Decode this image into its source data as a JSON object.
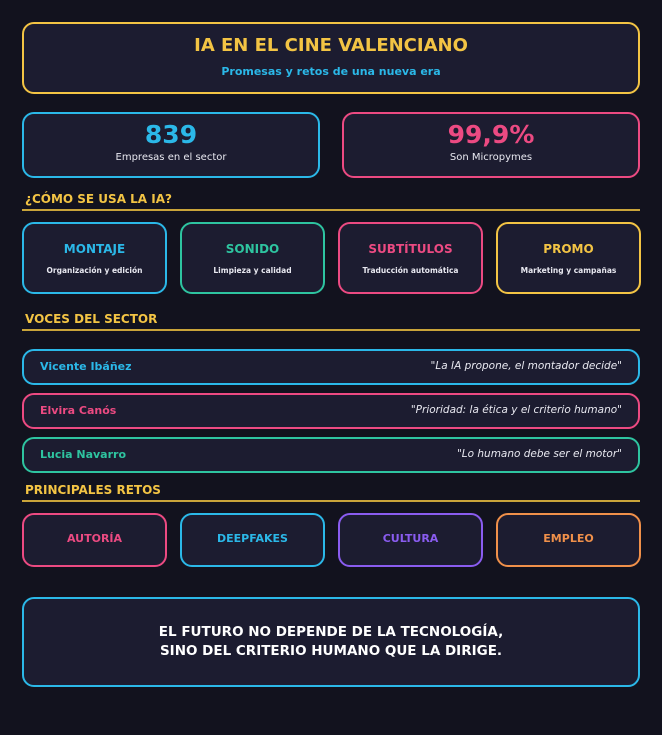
{
  "header": {
    "title": "IA EN EL CINE VALENCIANO",
    "subtitle": "Promesas y retos de una nueva era"
  },
  "stats": [
    {
      "value": "839",
      "label": "Empresas en el sector",
      "color": "#2bb8e8"
    },
    {
      "value": "99,9%",
      "label": "Son Micropymes",
      "color": "#ec4a82"
    }
  ],
  "uses": {
    "heading": "¿CÓMO SE USA LA IA?",
    "items": [
      {
        "title": "MONTAJE",
        "description": "Organización y edición",
        "color": "#2bb8e8"
      },
      {
        "title": "SONIDO",
        "description": "Limpieza y calidad",
        "color": "#2ec4a0"
      },
      {
        "title": "SUBTÍTULOS",
        "description": "Traducción automática",
        "color": "#ec4a82"
      },
      {
        "title": "PROMO",
        "description": "Marketing y campañas",
        "color": "#f3c444"
      }
    ]
  },
  "voices": {
    "heading": "VOCES DEL SECTOR",
    "items": [
      {
        "name": "Vicente Ibáñez",
        "quote": "\"La IA propone, el montador decide\"",
        "color": "#2bb8e8"
      },
      {
        "name": "Elvira Canós",
        "quote": "\"Prioridad: la ética y el criterio humano\"",
        "color": "#ec4a82"
      },
      {
        "name": "Lucia Navarro",
        "quote": "\"Lo humano debe ser el motor\"",
        "color": "#2ec4a0"
      }
    ]
  },
  "challenges": {
    "heading": "PRINCIPALES RETOS",
    "items": [
      {
        "title": "AUTORÍA",
        "color": "#ec4a82"
      },
      {
        "title": "DEEPFAKES",
        "color": "#2bb8e8"
      },
      {
        "title": "CULTURA",
        "color": "#8a5cf0"
      },
      {
        "title": "EMPLEO",
        "color": "#f0904a"
      }
    ]
  },
  "footer": {
    "lines": [
      "EL FUTURO NO DEPENDE DE LA TECNOLOGÍA,",
      "SINO DEL CRITERIO HUMANO QUE LA DIRIGE."
    ]
  }
}
